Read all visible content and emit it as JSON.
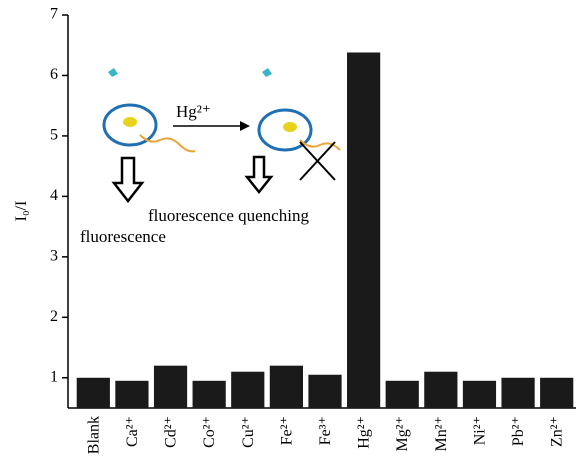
{
  "chart_data": {
    "type": "bar",
    "y_label": "I₀/I",
    "categories": [
      "Blank",
      "Ca²⁺",
      "Cd²⁺",
      "Co²⁺",
      "Cu²⁺",
      "Fe²⁺",
      "Fe³⁺",
      "Hg²⁺",
      "Mg²⁺",
      "Mn²⁺",
      "Ni²⁺",
      "Pb²⁺",
      "Zn²⁺"
    ],
    "values": [
      1.0,
      0.95,
      1.2,
      0.95,
      1.1,
      1.2,
      1.05,
      6.38,
      0.95,
      1.1,
      0.95,
      1.0,
      1.0
    ],
    "color": "#1a1a1a",
    "ylim": [
      0.5,
      7
    ],
    "yticks": [
      1,
      2,
      3,
      4,
      5,
      6,
      7
    ],
    "annotations": [
      "Hg²⁺",
      "fluorescence quenching",
      "fluorescence"
    ]
  }
}
